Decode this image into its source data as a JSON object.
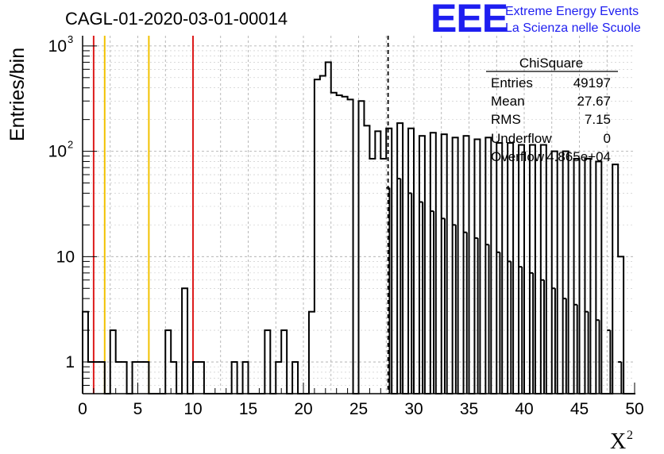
{
  "chart_data": {
    "type": "bar",
    "title": "CAGL-01-2020-03-01-00014",
    "ylabel": "Entries/bin",
    "xlabel": "X",
    "xlabel_superscript": "2",
    "xlim": [
      0,
      50
    ],
    "ylim": [
      0.5,
      1250
    ],
    "yscale": "log",
    "grid": true,
    "bin_width": 0.5,
    "x_ticks": [
      "0",
      "5",
      "10",
      "15",
      "20",
      "25",
      "30",
      "35",
      "40",
      "45",
      "50"
    ],
    "y_ticks": [
      {
        "base": "1",
        "exp": ""
      },
      {
        "base": "10",
        "exp": ""
      },
      {
        "base": "10",
        "exp": "2"
      },
      {
        "base": "10",
        "exp": "3"
      }
    ],
    "bins": [
      [
        0.0,
        3
      ],
      [
        0.5,
        1
      ],
      [
        1.0,
        1
      ],
      [
        1.5,
        1
      ],
      [
        2.0,
        0
      ],
      [
        2.5,
        2
      ],
      [
        3.0,
        1
      ],
      [
        3.5,
        1
      ],
      [
        4.0,
        0
      ],
      [
        4.5,
        1
      ],
      [
        5.0,
        1
      ],
      [
        5.5,
        1
      ],
      [
        6.0,
        0
      ],
      [
        6.5,
        0
      ],
      [
        7.0,
        0
      ],
      [
        7.5,
        2
      ],
      [
        8.0,
        1
      ],
      [
        8.5,
        0
      ],
      [
        9.0,
        5
      ],
      [
        9.5,
        0
      ],
      [
        10.0,
        1
      ],
      [
        10.5,
        1
      ],
      [
        11.0,
        0
      ],
      [
        11.5,
        0
      ],
      [
        12.0,
        0
      ],
      [
        12.5,
        0
      ],
      [
        13.0,
        0
      ],
      [
        13.5,
        1
      ],
      [
        14.0,
        0
      ],
      [
        14.5,
        1
      ],
      [
        15.0,
        0
      ],
      [
        15.5,
        0
      ],
      [
        16.0,
        0
      ],
      [
        16.5,
        2
      ],
      [
        17.0,
        0
      ],
      [
        17.5,
        1
      ],
      [
        18.0,
        2
      ],
      [
        18.5,
        0
      ],
      [
        19.0,
        1
      ],
      [
        19.5,
        0
      ],
      [
        20.0,
        0
      ],
      [
        20.5,
        3
      ],
      [
        21.0,
        480
      ],
      [
        21.5,
        520
      ],
      [
        22.0,
        700
      ],
      [
        22.5,
        360
      ],
      [
        23.0,
        340
      ],
      [
        23.5,
        330
      ],
      [
        24.0,
        310
      ],
      [
        24.5,
        0
      ],
      [
        25.0,
        300
      ],
      [
        25.5,
        175
      ],
      [
        26.0,
        85
      ],
      [
        26.5,
        155
      ],
      [
        27.0,
        85
      ],
      [
        27.5,
        165
      ],
      [
        28.0,
        0
      ],
      [
        28.5,
        185
      ],
      [
        29.0,
        0
      ],
      [
        29.5,
        165
      ],
      [
        30.0,
        0
      ],
      [
        30.5,
        140
      ],
      [
        31.0,
        0
      ],
      [
        31.5,
        150
      ],
      [
        32.0,
        0
      ],
      [
        32.5,
        145
      ],
      [
        33.0,
        0
      ],
      [
        33.5,
        135
      ],
      [
        34.0,
        0
      ],
      [
        34.5,
        140
      ],
      [
        35.0,
        0
      ],
      [
        35.5,
        130
      ],
      [
        36.0,
        0
      ],
      [
        36.5,
        135
      ],
      [
        37.0,
        0
      ],
      [
        37.5,
        120
      ],
      [
        38.0,
        0
      ],
      [
        38.5,
        120
      ],
      [
        39.0,
        0
      ],
      [
        39.5,
        115
      ],
      [
        40.0,
        0
      ],
      [
        40.5,
        115
      ],
      [
        41.0,
        0
      ],
      [
        41.5,
        115
      ],
      [
        42.0,
        0
      ],
      [
        42.5,
        100
      ],
      [
        43.0,
        0
      ],
      [
        43.5,
        100
      ],
      [
        44.0,
        0
      ],
      [
        44.5,
        85
      ],
      [
        45.0,
        0
      ],
      [
        45.5,
        85
      ],
      [
        46.0,
        0
      ],
      [
        46.5,
        80
      ],
      [
        47.0,
        0
      ],
      [
        47.5,
        0
      ],
      [
        48.0,
        75
      ],
      [
        48.5,
        10
      ],
      [
        49.0,
        0
      ],
      [
        49.5,
        0
      ]
    ],
    "drop_overlay": [
      [
        27.5,
        45
      ],
      [
        28.5,
        55
      ],
      [
        29.5,
        40
      ],
      [
        30.5,
        33
      ],
      [
        31.5,
        27
      ],
      [
        32.5,
        23
      ],
      [
        33.5,
        20
      ],
      [
        34.5,
        17
      ],
      [
        35.5,
        15
      ],
      [
        36.5,
        13
      ],
      [
        37.5,
        11
      ],
      [
        38.5,
        9
      ],
      [
        39.5,
        8
      ],
      [
        40.5,
        7
      ],
      [
        41.5,
        6
      ],
      [
        42.5,
        5
      ],
      [
        43.5,
        4
      ],
      [
        44.5,
        3.5
      ],
      [
        45.5,
        3
      ],
      [
        46.5,
        2.5
      ],
      [
        47.5,
        2
      ],
      [
        48.5,
        1
      ]
    ],
    "vertical_lines": [
      {
        "x": 1,
        "color": "#dd1c1c",
        "style": "solid"
      },
      {
        "x": 10,
        "color": "#dd1c1c",
        "style": "solid"
      },
      {
        "x": 2,
        "color": "#f2c200",
        "style": "solid"
      },
      {
        "x": 6,
        "color": "#f2c200",
        "style": "solid"
      },
      {
        "x": 27.67,
        "color": "#000000",
        "style": "dashed"
      }
    ],
    "stats": {
      "name": "ChiSquare",
      "rows": [
        {
          "label": "Entries",
          "value": "49197"
        },
        {
          "label": "Mean",
          "value": "27.67"
        },
        {
          "label": "RMS",
          "value": "7.15"
        },
        {
          "label": "Underflow",
          "value": "0"
        },
        {
          "label": "Overflow",
          "value": "4.865e+04"
        }
      ]
    },
    "logo": {
      "mark": "EEE",
      "line1": "Extreme Energy Events",
      "line2": "La Scienza nelle Scuole",
      "color": "#1e1ef0"
    }
  }
}
